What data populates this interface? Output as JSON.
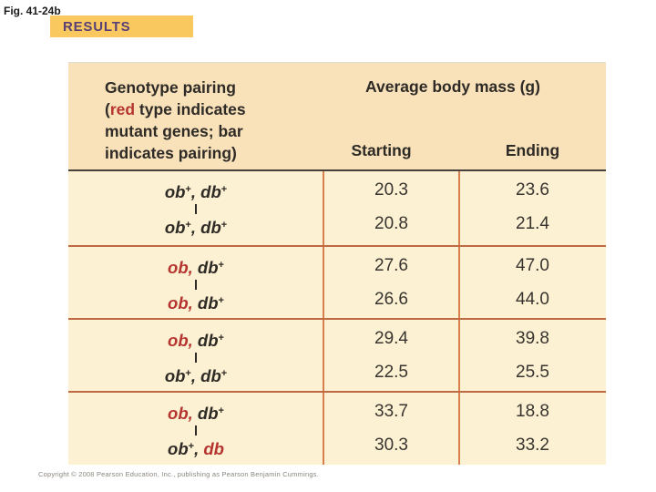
{
  "fig_label": "Fig. 41-24b",
  "results_label": "RESULTS",
  "colors": {
    "results_box_bg": "#f9c95f",
    "results_text": "#584077",
    "header_bg": "#f9e2ba",
    "body_bg": "#fdf1d3",
    "mutant_red": "#b5342f",
    "text_dark": "#2e2a26",
    "row_separator": "#bf6a42",
    "column_divider": "#d97f4b",
    "header_separator": "#46413b"
  },
  "table": {
    "genotype_header": {
      "line1": "Genotype pairing",
      "line2_open": "(",
      "line2_red_word": "red",
      "line2_rest": " type indicates",
      "line3": "mutant genes; bar",
      "line4": "indicates pairing)"
    },
    "mass_header": "Average body mass (g)",
    "starting_label": "Starting",
    "ending_label": "Ending",
    "rows": [
      {
        "top": {
          "genes": [
            {
              "name": "ob",
              "sup": "+",
              "mutant": false
            },
            {
              "name": "db",
              "sup": "+",
              "mutant": false
            }
          ],
          "starting": "20.3",
          "ending": "23.6"
        },
        "bottom": {
          "genes": [
            {
              "name": "ob",
              "sup": "+",
              "mutant": false
            },
            {
              "name": "db",
              "sup": "+",
              "mutant": false
            }
          ],
          "starting": "20.8",
          "ending": "21.4"
        }
      },
      {
        "top": {
          "genes": [
            {
              "name": "ob",
              "sup": "",
              "mutant": true
            },
            {
              "name": "db",
              "sup": "+",
              "mutant": false
            }
          ],
          "starting": "27.6",
          "ending": "47.0"
        },
        "bottom": {
          "genes": [
            {
              "name": "ob",
              "sup": "",
              "mutant": true
            },
            {
              "name": "db",
              "sup": "+",
              "mutant": false
            }
          ],
          "starting": "26.6",
          "ending": "44.0"
        }
      },
      {
        "top": {
          "genes": [
            {
              "name": "ob",
              "sup": "",
              "mutant": true
            },
            {
              "name": "db",
              "sup": "+",
              "mutant": false
            }
          ],
          "starting": "29.4",
          "ending": "39.8"
        },
        "bottom": {
          "genes": [
            {
              "name": "ob",
              "sup": "+",
              "mutant": false
            },
            {
              "name": "db",
              "sup": "+",
              "mutant": false
            }
          ],
          "starting": "22.5",
          "ending": "25.5"
        }
      },
      {
        "top": {
          "genes": [
            {
              "name": "ob",
              "sup": "",
              "mutant": true
            },
            {
              "name": "db",
              "sup": "+",
              "mutant": false
            }
          ],
          "starting": "33.7",
          "ending": "18.8"
        },
        "bottom": {
          "genes": [
            {
              "name": "ob",
              "sup": "+",
              "mutant": false
            },
            {
              "name": "db",
              "sup": "",
              "mutant": true
            }
          ],
          "starting": "30.3",
          "ending": "33.2"
        }
      }
    ]
  },
  "copyright": "Copyright © 2008 Pearson Education, Inc., publishing as Pearson Benjamin Cummings."
}
